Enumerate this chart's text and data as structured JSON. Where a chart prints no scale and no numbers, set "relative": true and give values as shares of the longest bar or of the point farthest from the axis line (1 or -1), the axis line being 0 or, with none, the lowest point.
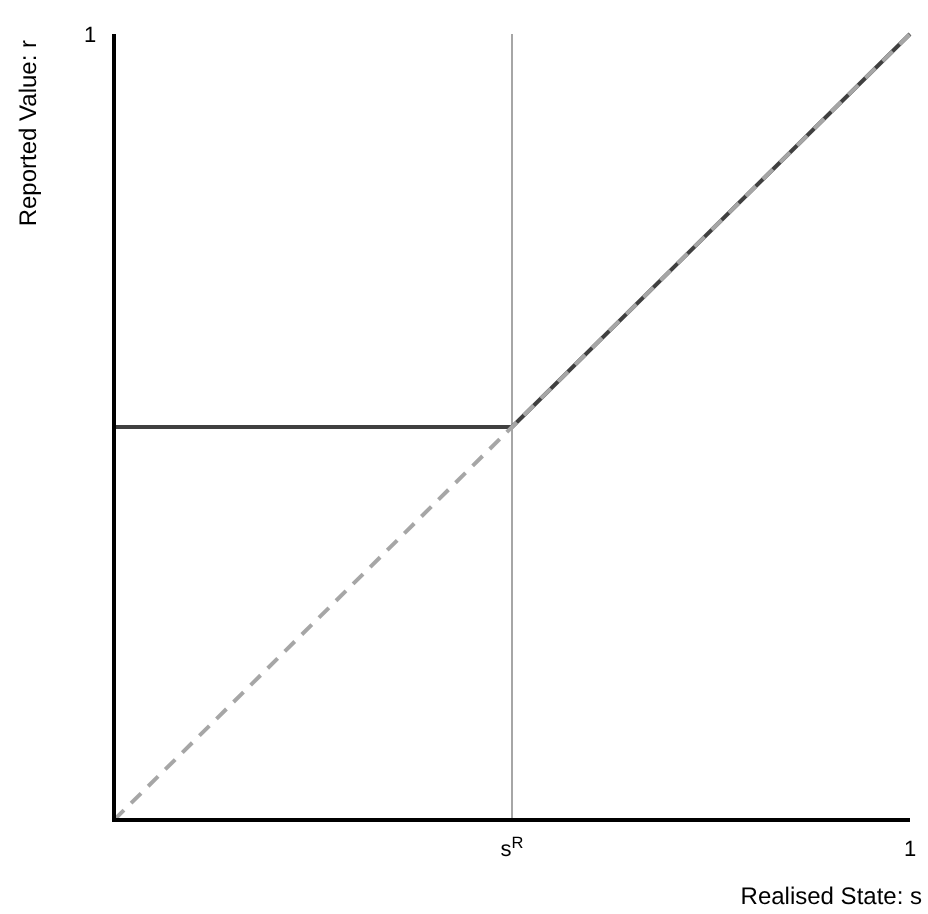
{
  "chart_data": {
    "type": "line",
    "xlabel": "Realised State: s",
    "ylabel": "Reported Value: r",
    "relative": true,
    "categories": [
      null,
      "s$^{R}$",
      "1"
    ],
    "series": [
      {
        "color": "#404040",
        "values": [
          0.5,
          0.5,
          1
        ],
        "line_style": "solid"
      },
      {
        "color": "#a6a6a6",
        "values": [
          0,
          0.5,
          1
        ],
        "line_style": "dashed"
      }
    ],
    "ref_lines": [
      {
        "axis": "x",
        "value": "s$^{R}$",
        "color": "#a6a6a6"
      }
    ],
    "annotations": [
      "1"
    ]
  }
}
